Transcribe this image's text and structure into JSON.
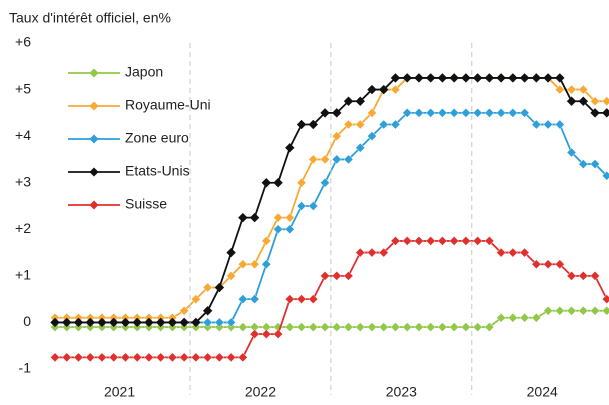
{
  "chart_data": {
    "type": "line",
    "title": "Taux d'intérêt officiel, en%",
    "categories": [
      null,
      null,
      null,
      null,
      null,
      null,
      null,
      null,
      null,
      null,
      null,
      null,
      null,
      null,
      null,
      null,
      null,
      null,
      null,
      null,
      null,
      null,
      null,
      null,
      null,
      null,
      null,
      null,
      null,
      null,
      null,
      null,
      null,
      null,
      null,
      null,
      null,
      null,
      null,
      null,
      null,
      null,
      null,
      null,
      null,
      null,
      null,
      null
    ],
    "year_labels": [
      "2021",
      "2022",
      "2023",
      "2024"
    ],
    "ylim": [
      -1,
      6
    ],
    "yticks": [
      {
        "value": 6,
        "label": "+6"
      },
      {
        "value": 5,
        "label": "+5"
      },
      {
        "value": 4,
        "label": "+4"
      },
      {
        "value": 3,
        "label": "+3"
      },
      {
        "value": 2,
        "label": "+2"
      },
      {
        "value": 1,
        "label": "+1"
      },
      0,
      -1
    ],
    "legend": "top-left",
    "series": [
      {
        "name": "Japon",
        "color": "#92c84a",
        "values": [
          -0.1,
          -0.1,
          -0.1,
          -0.1,
          -0.1,
          -0.1,
          -0.1,
          -0.1,
          -0.1,
          -0.1,
          -0.1,
          -0.1,
          -0.1,
          -0.1,
          -0.1,
          -0.1,
          -0.1,
          -0.1,
          -0.1,
          -0.1,
          -0.1,
          -0.1,
          -0.1,
          -0.1,
          -0.1,
          -0.1,
          -0.1,
          -0.1,
          -0.1,
          -0.1,
          -0.1,
          -0.1,
          -0.1,
          -0.1,
          -0.1,
          -0.1,
          -0.1,
          -0.1,
          0.1,
          0.1,
          0.1,
          0.1,
          0.25,
          0.25,
          0.25,
          0.25,
          0.25,
          0.25
        ]
      },
      {
        "name": "Royaume-Uni",
        "color": "#f7a934",
        "values": [
          0.1,
          0.1,
          0.1,
          0.1,
          0.1,
          0.1,
          0.1,
          0.1,
          0.1,
          0.1,
          0.1,
          0.25,
          0.5,
          0.75,
          0.75,
          1.0,
          1.25,
          1.25,
          1.75,
          2.25,
          2.25,
          3.0,
          3.5,
          3.5,
          4.0,
          4.25,
          4.25,
          4.5,
          5.0,
          5.0,
          5.25,
          5.25,
          5.25,
          5.25,
          5.25,
          5.25,
          5.25,
          5.25,
          5.25,
          5.25,
          5.25,
          5.25,
          5.25,
          5.0,
          5.0,
          5.0,
          4.75,
          4.75
        ]
      },
      {
        "name": "Zone euro",
        "color": "#2e9fd8",
        "values": [
          0,
          0,
          0,
          0,
          0,
          0,
          0,
          0,
          0,
          0,
          0,
          0,
          0,
          0,
          0,
          0,
          0.5,
          0.5,
          1.25,
          2.0,
          2.0,
          2.5,
          2.5,
          3.0,
          3.5,
          3.5,
          3.75,
          4.0,
          4.25,
          4.25,
          4.5,
          4.5,
          4.5,
          4.5,
          4.5,
          4.5,
          4.5,
          4.5,
          4.5,
          4.5,
          4.5,
          4.25,
          4.25,
          4.25,
          3.65,
          3.4,
          3.4,
          3.15
        ]
      },
      {
        "name": "Etats-Unis",
        "color": "#111111",
        "values": [
          0,
          0,
          0,
          0,
          0,
          0,
          0,
          0,
          0,
          0,
          0,
          0,
          0,
          0.25,
          0.75,
          1.5,
          2.25,
          2.25,
          3.0,
          3.0,
          3.75,
          4.25,
          4.25,
          4.5,
          4.5,
          4.75,
          4.75,
          5.0,
          5.0,
          5.25,
          5.25,
          5.25,
          5.25,
          5.25,
          5.25,
          5.25,
          5.25,
          5.25,
          5.25,
          5.25,
          5.25,
          5.25,
          5.25,
          5.25,
          4.75,
          4.75,
          4.5,
          4.5
        ]
      },
      {
        "name": "Suisse",
        "color": "#e0302e",
        "values": [
          -0.75,
          -0.75,
          -0.75,
          -0.75,
          -0.75,
          -0.75,
          -0.75,
          -0.75,
          -0.75,
          -0.75,
          -0.75,
          -0.75,
          -0.75,
          -0.75,
          -0.75,
          -0.75,
          -0.75,
          -0.25,
          -0.25,
          -0.25,
          0.5,
          0.5,
          0.5,
          1.0,
          1.0,
          1.0,
          1.5,
          1.5,
          1.5,
          1.75,
          1.75,
          1.75,
          1.75,
          1.75,
          1.75,
          1.75,
          1.75,
          1.75,
          1.5,
          1.5,
          1.5,
          1.25,
          1.25,
          1.25,
          1.0,
          1.0,
          1.0,
          0.5
        ]
      }
    ]
  }
}
